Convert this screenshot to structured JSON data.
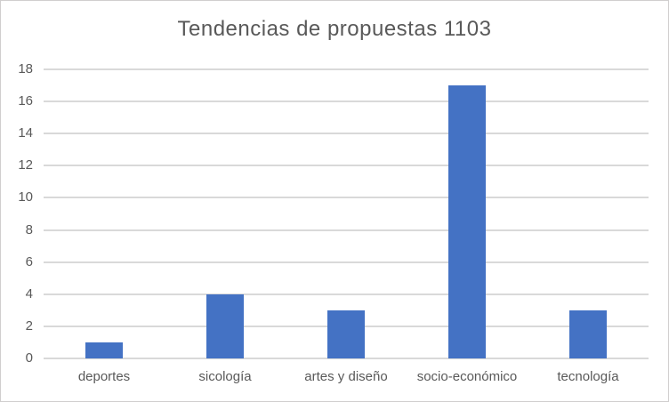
{
  "chart_data": {
    "type": "bar",
    "title": "Tendencias de propuestas 1103",
    "categories": [
      "deportes",
      "sicología",
      "artes y diseño",
      "socio-económico",
      "tecnología"
    ],
    "values": [
      1,
      4,
      3,
      17,
      3
    ],
    "xlabel": "",
    "ylabel": "",
    "ylim": [
      0,
      18
    ],
    "ytick_step": 2,
    "grid": true,
    "legend": "none",
    "colors": {
      "bar": "#4472C4",
      "gridline": "#D9D9D9",
      "axis_line": "#D9D9D9",
      "title_text": "#595959",
      "tick_text": "#595959",
      "frame_border": "#D0CECE",
      "background": "#FFFFFF"
    }
  }
}
